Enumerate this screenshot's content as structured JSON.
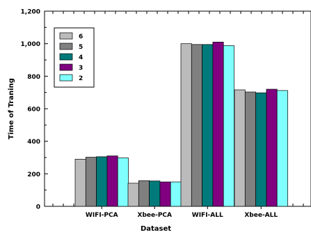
{
  "chart_data": {
    "type": "bar",
    "xlabel": "Dataset",
    "ylabel": "Time of Traning",
    "ylim": [
      0,
      1200
    ],
    "yticks": [
      0,
      200,
      400,
      600,
      800,
      1000,
      1200
    ],
    "ytick_labels": [
      "0",
      "200",
      "400",
      "600",
      "800",
      "1,000",
      "1,200"
    ],
    "categories": [
      "WIFI-PCA",
      "Xbee-PCA",
      "WIFI-ALL",
      "Xbee-ALL"
    ],
    "grid": false,
    "legend_position": "top-left",
    "series": [
      {
        "name": "6",
        "color": "#bbbbbb",
        "values": [
          290,
          142,
          1000,
          716
        ]
      },
      {
        "name": "5",
        "color": "#808080",
        "values": [
          302,
          158,
          995,
          703
        ]
      },
      {
        "name": "4",
        "color": "#007a7a",
        "values": [
          305,
          156,
          995,
          698
        ]
      },
      {
        "name": "3",
        "color": "#800080",
        "values": [
          310,
          150,
          1010,
          720
        ]
      },
      {
        "name": "2",
        "color": "#80ffff",
        "values": [
          298,
          150,
          988,
          712
        ]
      }
    ]
  }
}
